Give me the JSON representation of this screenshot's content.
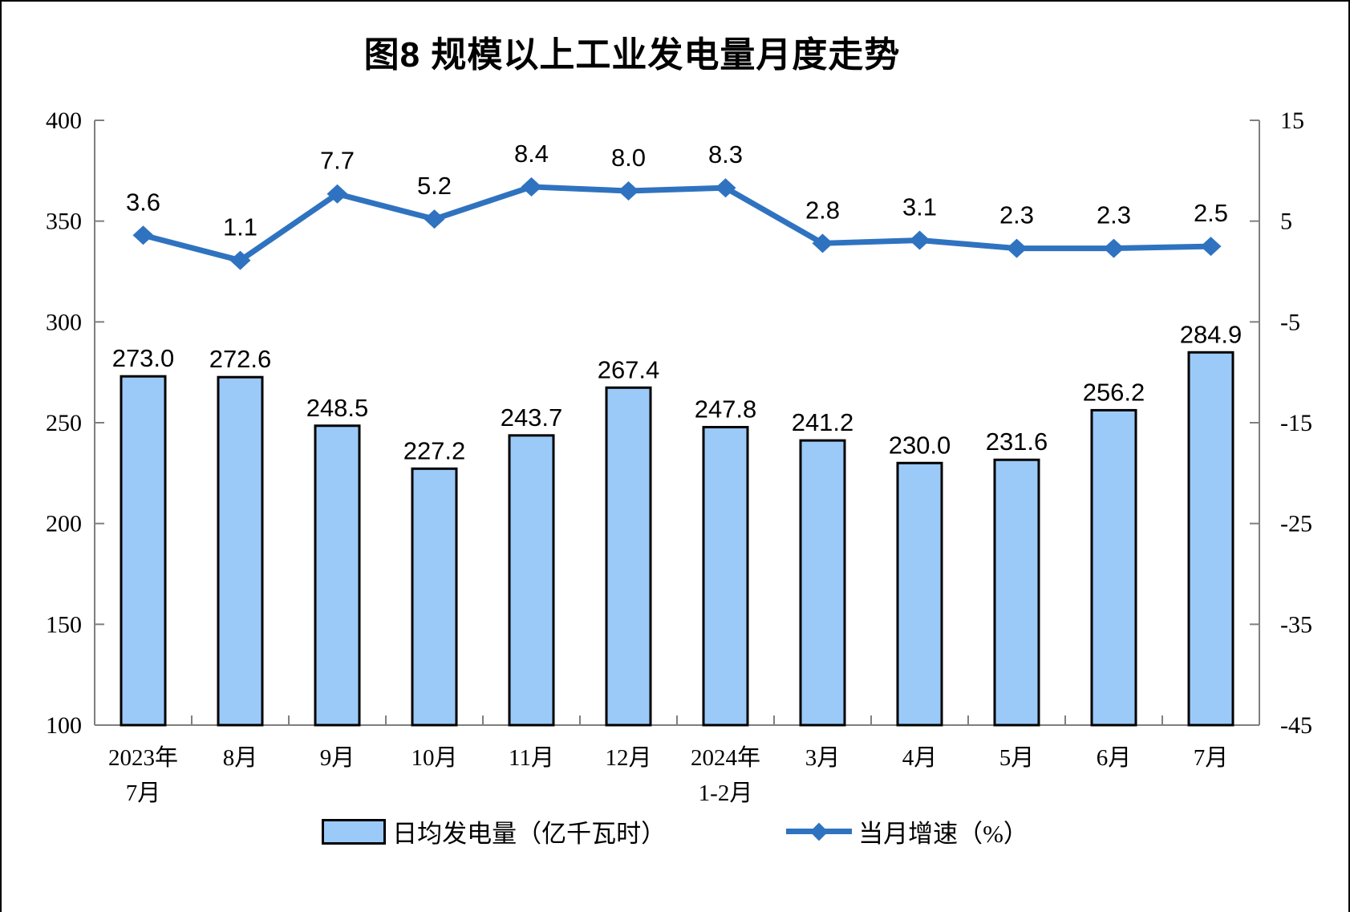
{
  "colors": {
    "bar_fill": "#9BCAF8",
    "bar_border": "#000000",
    "line": "#2F73C0",
    "axis": "#7F7F7F",
    "text": "#000000"
  },
  "legend": {
    "bar_label": "日均发电量（亿千瓦时）",
    "line_label": "当月增速（%）"
  },
  "chart_data": {
    "type": "bar+line",
    "title": "图8 规模以上工业发电量月度走势",
    "categories": [
      [
        "2023年",
        "7月"
      ],
      [
        "8月"
      ],
      [
        "9月"
      ],
      [
        "10月"
      ],
      [
        "11月"
      ],
      [
        "12月"
      ],
      [
        "2024年",
        "1-2月"
      ],
      [
        "3月"
      ],
      [
        "4月"
      ],
      [
        "5月"
      ],
      [
        "6月"
      ],
      [
        "7月"
      ]
    ],
    "series": [
      {
        "name": "日均发电量（亿千瓦时）",
        "type": "bar",
        "axis": "left",
        "values": [
          273.0,
          272.6,
          248.5,
          227.2,
          243.7,
          267.4,
          247.8,
          241.2,
          230.0,
          231.6,
          256.2,
          284.9
        ]
      },
      {
        "name": "当月增速（%）",
        "type": "line",
        "axis": "right",
        "values": [
          3.6,
          1.1,
          7.7,
          5.2,
          8.4,
          8.0,
          8.3,
          2.8,
          3.1,
          2.3,
          2.3,
          2.5
        ]
      }
    ],
    "left_axis": {
      "min": 100,
      "max": 400,
      "step": 50,
      "ticks": [
        100,
        150,
        200,
        250,
        300,
        350,
        400
      ]
    },
    "right_axis": {
      "min": -45,
      "max": 15,
      "step": 10,
      "ticks": [
        -45,
        -35,
        -25,
        -15,
        -5,
        5,
        15
      ]
    },
    "grid": false,
    "legend_position": "bottom"
  }
}
